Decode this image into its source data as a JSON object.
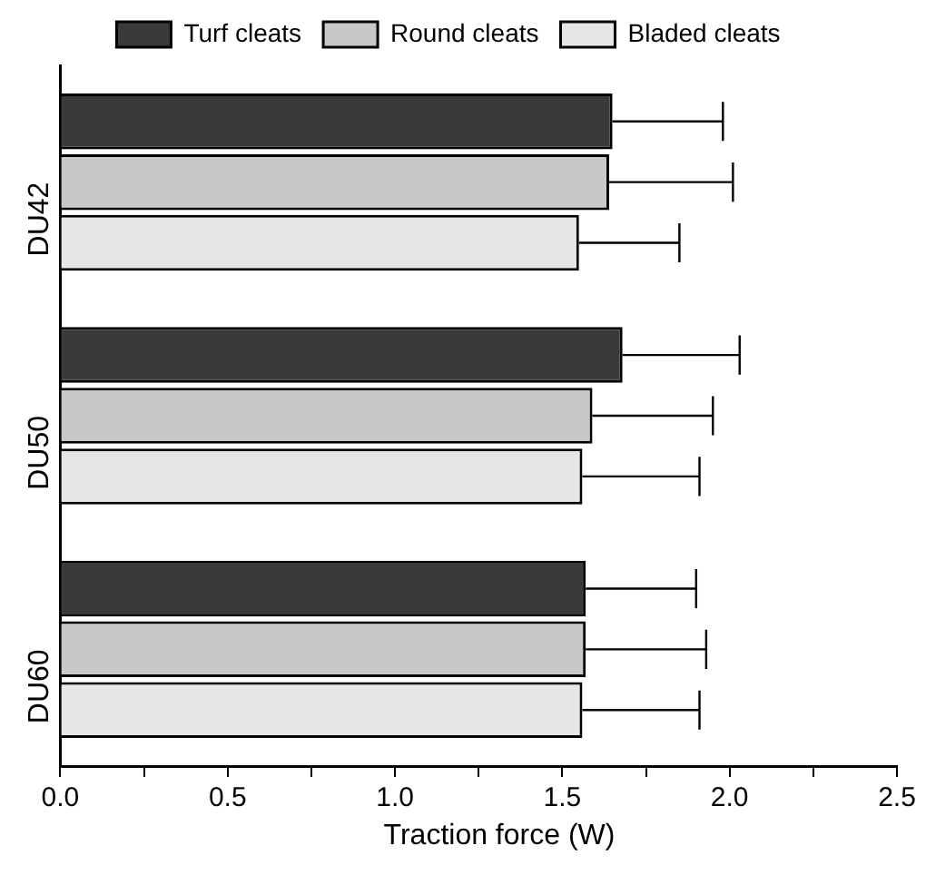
{
  "chart_data": {
    "type": "bar",
    "orientation": "horizontal",
    "xlabel": "Traction force (W)",
    "categories": [
      "DU42",
      "DU50",
      "DU60"
    ],
    "series": [
      {
        "name": "Turf cleats",
        "color": "#3a3a3a",
        "values": [
          1.65,
          1.68,
          1.57
        ],
        "errors": [
          [
            1.65,
            1.98
          ],
          [
            1.68,
            2.03
          ],
          [
            1.57,
            1.9
          ]
        ]
      },
      {
        "name": "Round cleats",
        "color": "#c8c8c8",
        "values": [
          1.64,
          1.59,
          1.57
        ],
        "errors": [
          [
            1.64,
            2.01
          ],
          [
            1.59,
            1.95
          ],
          [
            1.57,
            1.93
          ]
        ]
      },
      {
        "name": "Bladed cleats",
        "color": "#e6e6e6",
        "values": [
          1.55,
          1.56,
          1.56
        ],
        "errors": [
          [
            1.55,
            1.85
          ],
          [
            1.56,
            1.91
          ],
          [
            1.56,
            1.91
          ]
        ]
      }
    ],
    "xlim": [
      0,
      2.5
    ],
    "xticks": [
      {
        "value": 0,
        "label": "0.0"
      },
      {
        "value": 0.25,
        "label": null
      },
      {
        "value": 0.5,
        "label": "0.5"
      },
      {
        "value": 0.75,
        "label": null
      },
      {
        "value": 1,
        "label": "1.0"
      },
      {
        "value": 1.25,
        "label": null
      },
      {
        "value": 1.5,
        "label": "1.5"
      },
      {
        "value": 1.75,
        "label": null
      },
      {
        "value": 2,
        "label": "2.0"
      },
      {
        "value": 2.25,
        "label": null
      },
      {
        "value": 2.5,
        "label": "2.5"
      }
    ],
    "grid": false,
    "legend": "top"
  }
}
